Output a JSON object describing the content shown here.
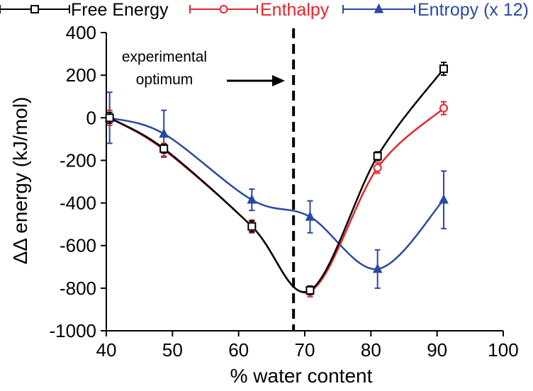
{
  "chart_data": {
    "type": "line",
    "xlabel": "% water content",
    "ylabel": "ΔΔ energy (kJ/mol)",
    "xlim": [
      40,
      100
    ],
    "ylim": [
      -1000,
      400
    ],
    "x_ticks": [
      40,
      50,
      60,
      70,
      80,
      90,
      100
    ],
    "y_ticks": [
      -1000,
      -800,
      -600,
      -400,
      -200,
      0,
      200,
      400
    ],
    "x_tick_labels": [
      "40",
      "50",
      "60",
      "70",
      "80",
      "90",
      "100"
    ],
    "y_tick_labels": [
      "-1000",
      "-800",
      "-600",
      "-400",
      "-200",
      "0",
      "200",
      "400"
    ],
    "grid": false,
    "legend_position": "top",
    "series": [
      {
        "name": "Free Energy",
        "color": "#000000",
        "marker": "square",
        "x": [
          40.5,
          48.7,
          62,
          70.8,
          81,
          91
        ],
        "y": [
          0,
          -145,
          -510,
          -810,
          -180,
          230
        ],
        "err": [
          25,
          20,
          25,
          20,
          20,
          30
        ]
      },
      {
        "name": "Enthalpy",
        "color": "#e8242a",
        "marker": "circle",
        "x": [
          40.5,
          48.7,
          62,
          70.8,
          81,
          91
        ],
        "y": [
          0,
          -150,
          -510,
          -815,
          -235,
          45
        ],
        "err": [
          35,
          30,
          30,
          25,
          25,
          30
        ]
      },
      {
        "name": "Entropy (x 12)",
        "color": "#2a49a3",
        "marker": "triangle",
        "x": [
          40.5,
          48.7,
          62,
          70.8,
          81,
          91
        ],
        "y": [
          0,
          -75,
          -385,
          -465,
          -710,
          -385
        ],
        "err": [
          120,
          110,
          50,
          75,
          90,
          135
        ]
      }
    ],
    "annotation": {
      "text_line1": "experimental",
      "text_line2": "optimum",
      "x": 68.3
    }
  }
}
